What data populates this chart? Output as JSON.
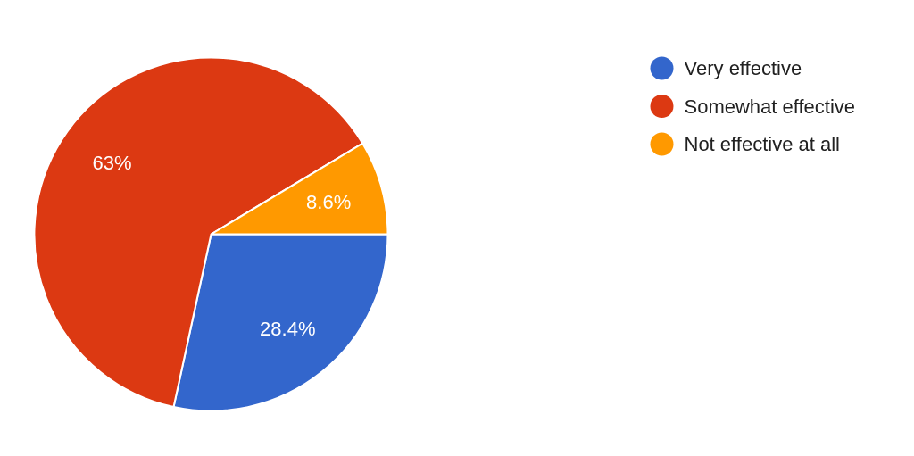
{
  "chart_data": {
    "type": "pie",
    "categories": [
      "Very effective",
      "Somewhat effective",
      "Not effective at all"
    ],
    "values": [
      28.4,
      63,
      8.6
    ],
    "colors": [
      "#3366cc",
      "#dc3912",
      "#ff9900"
    ],
    "value_labels": [
      "28.4%",
      "63%",
      "8.6%"
    ],
    "legend": "top right"
  }
}
